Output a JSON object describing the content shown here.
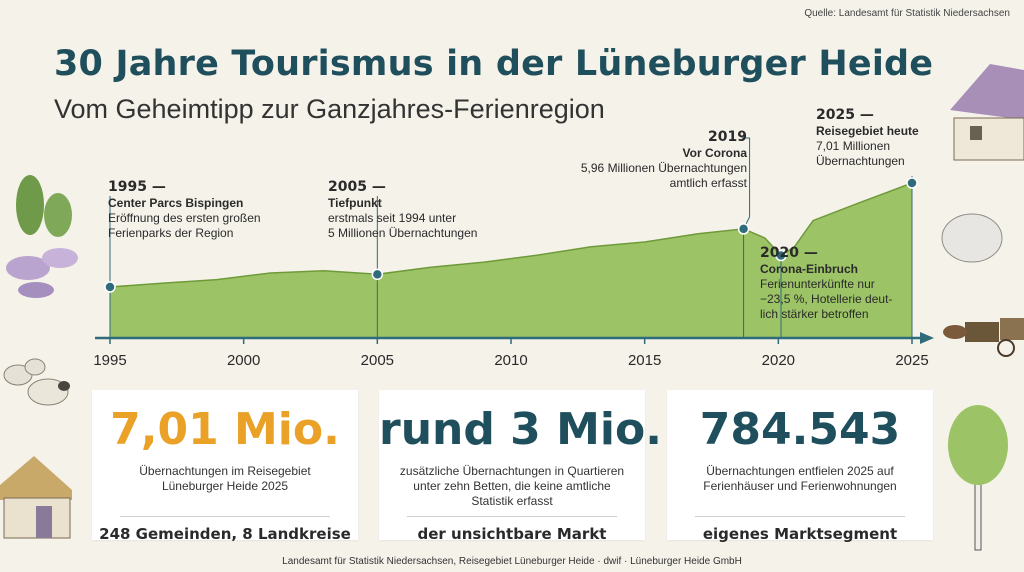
{
  "source_top": "Quelle: Landesamt für Statistik Niedersachsen",
  "title": "30 Jahre Tourismus in der Lüneburger Heide",
  "subtitle": "Vom Geheimtipp zur Ganzjahres-Ferienregion",
  "colors": {
    "title": "#1f4e5c",
    "area_fill": "#9cc466",
    "area_stroke": "#6f9a3a",
    "axis": "#2f6b7a",
    "marker": "#2f6b7a",
    "accent_orange": "#e9a227",
    "dark_teal": "#1f4e5c"
  },
  "chart_data": {
    "type": "area",
    "x": [
      1995,
      1997,
      1999,
      2001,
      2003,
      2005,
      2007,
      2009,
      2011,
      2013,
      2015,
      2017,
      2018.7,
      2019.5,
      2020.1,
      2020.6,
      2021.3,
      2023,
      2025
    ],
    "y": [
      4.63,
      4.72,
      4.8,
      4.95,
      5.0,
      4.92,
      5.08,
      5.2,
      5.36,
      5.55,
      5.66,
      5.85,
      5.96,
      5.75,
      5.35,
      5.55,
      6.15,
      6.55,
      7.01
    ],
    "xlim": [
      1994,
      2025.5
    ],
    "xticks": [
      1995,
      2000,
      2005,
      2010,
      2015,
      2020,
      2025
    ],
    "ylim": [
      0,
      7.2
    ],
    "unit_note": "Millionen Übernachtungen",
    "markers": [
      {
        "x": 1995,
        "y": 4.63
      },
      {
        "x": 2005,
        "y": 4.92
      },
      {
        "x": 2018.7,
        "y": 5.96
      },
      {
        "x": 2020.1,
        "y": 5.35
      },
      {
        "x": 2025,
        "y": 7.01
      }
    ]
  },
  "annotations": {
    "a1995": {
      "year": "1995 —",
      "head": "Center Parcs Bispingen",
      "l1": "Eröffnung des ersten großen",
      "l2": "Ferienparks der Region"
    },
    "a2005": {
      "year": "2005 —",
      "head": "Tiefpunkt",
      "l1": "erstmals seit 1994 unter",
      "l2": "5 Millionen Übernachtungen"
    },
    "a2019": {
      "year": "2019",
      "head": "Vor Corona",
      "l1": "5,96 Millionen Übernachtungen",
      "l2": "amtlich erfasst"
    },
    "a2020": {
      "year": "2020 —",
      "head": "Corona-Einbruch",
      "l1": "Ferienunterkünfte nur",
      "l2": "−23,5 %, Hotellerie deut-",
      "l3": "lich stärker betroffen"
    },
    "a2025": {
      "year": "2025 —",
      "head": "Reisegebiet heute",
      "l1": "7,01 Millionen",
      "l2": "Übernachtungen"
    }
  },
  "cards": [
    {
      "big": "7,01 Mio.",
      "desc": "Übernachtungen im Reisegebiet Lüneburger Heide 2025",
      "foot": "248 Gemeinden, 8 Landkreise",
      "color": "#e9a227"
    },
    {
      "big": "rund 3 Mio.",
      "desc": "zusätzliche Übernachtungen in Quartieren unter zehn Betten, die keine amtliche Statistik erfasst",
      "foot": "der unsichtbare Markt",
      "color": "#1f4e5c"
    },
    {
      "big": "784.543",
      "desc": "Übernachtungen entfielen 2025 auf Ferienhäuser und Ferienwohnungen",
      "foot": "eigenes Marktsegment",
      "color": "#1f4e5c"
    }
  ],
  "bottom_source": "Landesamt für Statistik Niedersachsen, Reisegebiet Lüneburger Heide · dwif · Lüneburger Heide GmbH"
}
